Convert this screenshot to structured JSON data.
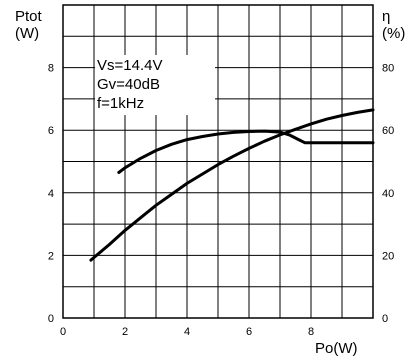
{
  "chart_data": {
    "type": "line",
    "title": "",
    "xlabel": "Po(W)",
    "ylabel_left": "Ptot\n(W)",
    "ylabel_right": "η\n(%)",
    "ylabel_left_lines": [
      "Ptot",
      "(W)"
    ],
    "ylabel_right_lines": [
      "η",
      "(%)"
    ],
    "xlim": [
      0,
      10
    ],
    "ylim_left": [
      0,
      10
    ],
    "ylim_right": [
      0,
      100
    ],
    "x_ticks": [
      0,
      2,
      4,
      6,
      8
    ],
    "y_ticks_left": [
      0,
      2,
      4,
      6,
      8
    ],
    "y_ticks_right": [
      0,
      20,
      40,
      60,
      80
    ],
    "grid": true,
    "annotation_lines": [
      "Vs=14.4V",
      "Gv=40dB",
      "f=1kHz"
    ],
    "series": [
      {
        "axis": "left",
        "x": [
          0.9,
          1.5,
          2,
          2.5,
          3,
          3.5,
          4,
          4.5,
          5,
          5.5,
          6,
          6.5,
          7,
          7.5,
          8,
          8.5,
          9,
          9.5,
          10
        ],
        "y": [
          1.85,
          2.35,
          2.8,
          3.2,
          3.6,
          3.95,
          4.3,
          4.6,
          4.9,
          5.17,
          5.42,
          5.65,
          5.85,
          6.03,
          6.2,
          6.35,
          6.47,
          6.57,
          6.65
        ]
      },
      {
        "axis": "right",
        "x": [
          1.8,
          2,
          2.5,
          3,
          3.5,
          4,
          4.5,
          5,
          5.5,
          6,
          6.5,
          7,
          7.3,
          7.6,
          7.8,
          8,
          8.5,
          9,
          9.5,
          10
        ],
        "y": [
          46.5,
          48,
          51,
          53.5,
          55.5,
          57,
          58,
          58.8,
          59.3,
          59.6,
          59.7,
          59.4,
          58.5,
          57,
          56,
          56,
          56,
          56,
          56,
          56
        ]
      }
    ]
  }
}
